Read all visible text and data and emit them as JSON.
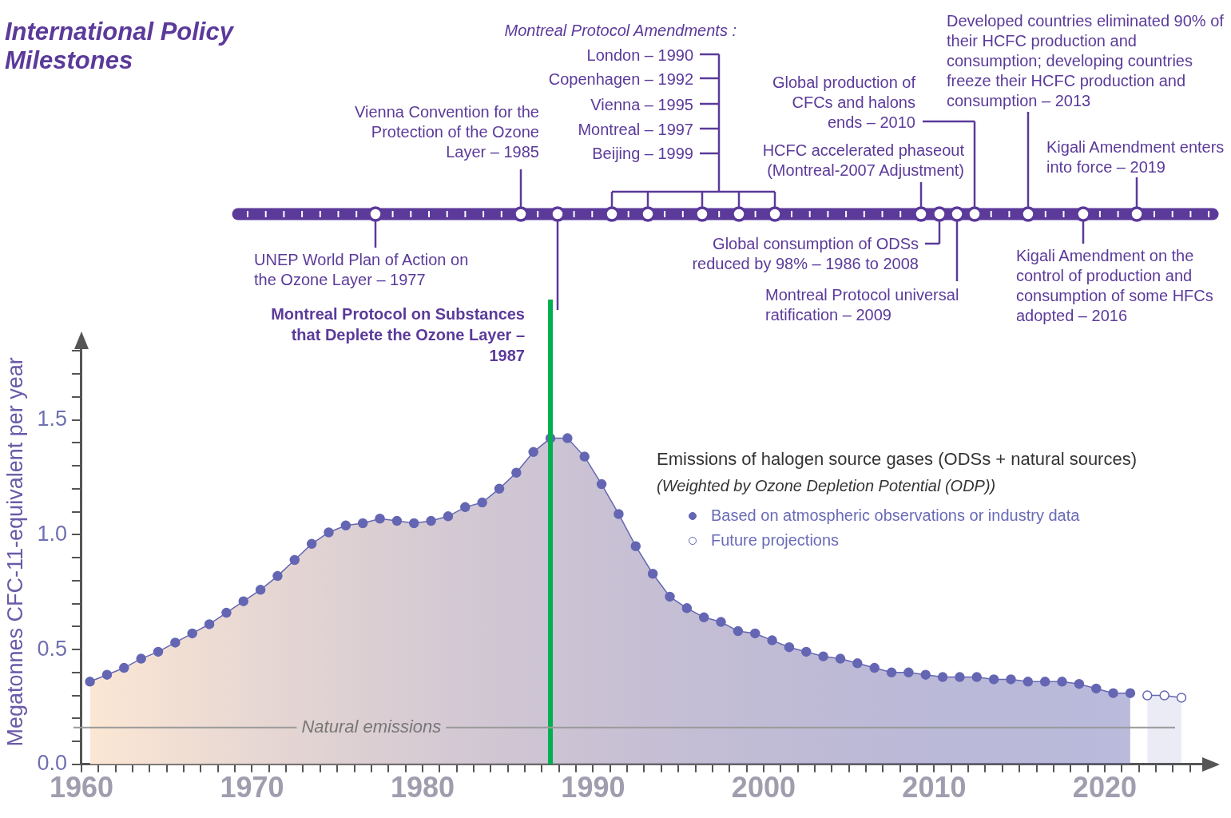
{
  "chart_data": {
    "type": "area",
    "title": "International Policy Milestones",
    "ylabel": "Megatonnes CFC-11-equivalent per year",
    "legend_title": "Emissions of halogen source gases (ODSs + natural sources)",
    "legend": "top right",
    "marker": "circle",
    "xlim": [
      1960,
      2026
    ],
    "ylim": [
      0,
      1.85
    ],
    "xticks": [
      1960,
      {
        "value": 1961,
        "label": null
      },
      {
        "value": 1962,
        "label": null
      },
      {
        "value": 1963,
        "label": null
      },
      {
        "value": 1964,
        "label": null
      },
      {
        "value": 1965,
        "label": null
      },
      {
        "value": 1966,
        "label": null
      },
      {
        "value": 1967,
        "label": null
      },
      {
        "value": 1968,
        "label": null
      },
      {
        "value": 1969,
        "label": null
      },
      1970,
      {
        "value": 1971,
        "label": null
      },
      {
        "value": 1972,
        "label": null
      },
      {
        "value": 1973,
        "label": null
      },
      {
        "value": 1974,
        "label": null
      },
      {
        "value": 1975,
        "label": null
      },
      {
        "value": 1976,
        "label": null
      },
      {
        "value": 1977,
        "label": null
      },
      {
        "value": 1978,
        "label": null
      },
      {
        "value": 1979,
        "label": null
      },
      1980,
      {
        "value": 1981,
        "label": null
      },
      {
        "value": 1982,
        "label": null
      },
      {
        "value": 1983,
        "label": null
      },
      {
        "value": 1984,
        "label": null
      },
      {
        "value": 1985,
        "label": null
      },
      {
        "value": 1986,
        "label": null
      },
      {
        "value": 1987,
        "label": null
      },
      {
        "value": 1988,
        "label": null
      },
      {
        "value": 1989,
        "label": null
      },
      1990,
      {
        "value": 1991,
        "label": null
      },
      {
        "value": 1992,
        "label": null
      },
      {
        "value": 1993,
        "label": null
      },
      {
        "value": 1994,
        "label": null
      },
      {
        "value": 1995,
        "label": null
      },
      {
        "value": 1996,
        "label": null
      },
      {
        "value": 1997,
        "label": null
      },
      {
        "value": 1998,
        "label": null
      },
      {
        "value": 1999,
        "label": null
      },
      2000,
      {
        "value": 2001,
        "label": null
      },
      {
        "value": 2002,
        "label": null
      },
      {
        "value": 2003,
        "label": null
      },
      {
        "value": 2004,
        "label": null
      },
      {
        "value": 2005,
        "label": null
      },
      {
        "value": 2006,
        "label": null
      },
      {
        "value": 2007,
        "label": null
      },
      {
        "value": 2008,
        "label": null
      },
      {
        "value": 2009,
        "label": null
      },
      2010,
      {
        "value": 2011,
        "label": null
      },
      {
        "value": 2012,
        "label": null
      },
      {
        "value": 2013,
        "label": null
      },
      {
        "value": 2014,
        "label": null
      },
      {
        "value": 2015,
        "label": null
      },
      {
        "value": 2016,
        "label": null
      },
      {
        "value": 2017,
        "label": null
      },
      {
        "value": 2018,
        "label": null
      },
      {
        "value": 2019,
        "label": null
      },
      2020,
      {
        "value": 2021,
        "label": null
      },
      {
        "value": 2022,
        "label": null
      },
      {
        "value": 2023,
        "label": null
      },
      {
        "value": 2024,
        "label": null
      },
      {
        "value": 2025,
        "label": null
      }
    ],
    "yticks": [
      {
        "value": 0,
        "label": "0.0"
      },
      {
        "value": 0.1,
        "label": null
      },
      {
        "value": 0.2,
        "label": null
      },
      {
        "value": 0.3,
        "label": null
      },
      {
        "value": 0.4,
        "label": null
      },
      {
        "value": 0.5,
        "label": "0.5"
      },
      {
        "value": 0.6,
        "label": null
      },
      {
        "value": 0.7,
        "label": null
      },
      {
        "value": 0.8,
        "label": null
      },
      {
        "value": 0.9,
        "label": null
      },
      {
        "value": 1,
        "label": "1.0"
      },
      {
        "value": 1.1,
        "label": null
      },
      {
        "value": 1.2,
        "label": null
      },
      {
        "value": 1.3,
        "label": null
      },
      {
        "value": 1.4,
        "label": null
      },
      {
        "value": 1.5,
        "label": "1.5"
      },
      {
        "value": 1.6,
        "label": null
      },
      {
        "value": 1.7,
        "label": null
      },
      {
        "value": 1.8,
        "label": null
      }
    ],
    "series": [
      {
        "name": "Based on atmospheric observations or industry data",
        "color": "#6466b3",
        "x": [
          1960.5,
          1961.5,
          1962.5,
          1963.5,
          1964.5,
          1965.5,
          1966.5,
          1967.5,
          1968.5,
          1969.5,
          1970.5,
          1971.5,
          1972.5,
          1973.5,
          1974.5,
          1975.5,
          1976.5,
          1977.5,
          1978.5,
          1979.5,
          1980.5,
          1981.5,
          1982.5,
          1983.5,
          1984.5,
          1985.5,
          1986.5,
          1987.5,
          1988.5,
          1989.5,
          1990.5,
          1991.5,
          1992.5,
          1993.5,
          1994.5,
          1995.5,
          1996.5,
          1997.5,
          1998.5,
          1999.5,
          2000.5,
          2001.5,
          2002.5,
          2003.5,
          2004.5,
          2005.5,
          2006.5,
          2007.5,
          2008.5,
          2009.5,
          2010.5,
          2011.5,
          2012.5,
          2013.5,
          2014.5,
          2015.5,
          2016.5,
          2017.5,
          2018.5,
          2019.5,
          2020.5,
          2021.5
        ],
        "values": [
          0.36,
          0.39,
          0.42,
          0.46,
          0.49,
          0.53,
          0.57,
          0.61,
          0.66,
          0.71,
          0.76,
          0.82,
          0.89,
          0.96,
          1.01,
          1.04,
          1.05,
          1.07,
          1.06,
          1.05,
          1.06,
          1.08,
          1.12,
          1.14,
          1.2,
          1.27,
          1.36,
          1.42,
          1.42,
          1.34,
          1.22,
          1.09,
          0.95,
          0.83,
          0.73,
          0.68,
          0.64,
          0.62,
          0.58,
          0.57,
          0.54,
          0.51,
          0.49,
          0.47,
          0.46,
          0.44,
          0.42,
          0.4,
          0.4,
          0.39,
          0.38,
          0.38,
          0.38,
          0.37,
          0.37,
          0.36,
          0.36,
          0.36,
          0.35,
          0.33,
          0.31,
          0.31
        ]
      },
      {
        "name": "Future projections",
        "color": "#6466b3",
        "x": [
          2022.5,
          2023.5,
          2024.5
        ],
        "values": [
          0.3,
          0.3,
          0.29
        ]
      }
    ],
    "ref_lines": [
      {
        "axis": "x",
        "value": 1987.5,
        "label": "Montreal Protocol on Substances that Deplete the Ozone Layer – 1987",
        "color": "#00b050"
      },
      {
        "axis": "y",
        "value": 0.16,
        "label": "Natural emissions",
        "color": "#9a9a9a"
      }
    ],
    "annotations": [
      "Montreal Protocol Amendments :",
      "London – 1990",
      "Copenhagen – 1992",
      "Vienna – 1995",
      "Montreal – 1997",
      "Beijing – 1999",
      "Vienna Convention for the Protection of the Ozone Layer – 1985",
      "Global production of CFCs and halons ends – 2010",
      "Developed countries eliminated 90% of their HCFC production and consumption; developing countries freeze their HCFC production and consumption – 2013",
      "HCFC accelerated phaseout (Montreal-2007 Adjustment)",
      "Kigali Amendment enters into force – 2019",
      "UNEP World Plan of Action on the Ozone Layer – 1977",
      "Global consumption of ODSs reduced by 98% – 1986 to 2008",
      "Montreal Protocol universal ratification – 2009",
      "Kigali Amendment on the control of production and consumption of some HFCs adopted – 2016",
      "(Weighted by Ozone Depletion Potential (ODP))"
    ]
  }
}
